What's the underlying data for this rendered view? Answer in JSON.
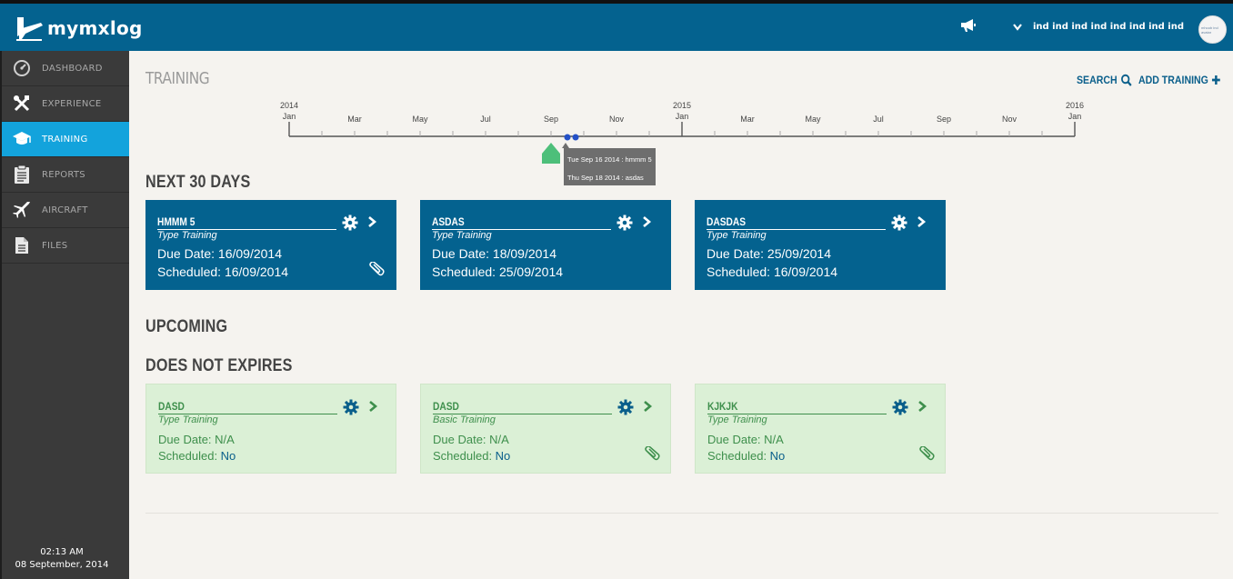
{
  "app": {
    "name": "mymxlog"
  },
  "header": {
    "user_name": "ind ind ind ind ind ind ind ind",
    "avatar_text": "mhoob ind avatar"
  },
  "sidebar": {
    "items": [
      {
        "label": "DASHBOARD",
        "icon": "dashboard-icon"
      },
      {
        "label": "EXPERIENCE",
        "icon": "tools-icon"
      },
      {
        "label": "TRAINING",
        "icon": "graduation-cap-icon",
        "active": true
      },
      {
        "label": "REPORTS",
        "icon": "clipboard-icon"
      },
      {
        "label": "AIRCRAFT",
        "icon": "plane-icon"
      },
      {
        "label": "FILES",
        "icon": "file-icon"
      }
    ],
    "clock_time": "02:13 AM",
    "clock_date": "08 September, 2014"
  },
  "page": {
    "title": "TRAINING",
    "search_label": "SEARCH",
    "add_label": "ADD TRAINING"
  },
  "timeline": {
    "year_labels": [
      {
        "year": "2014",
        "month": "Jan"
      },
      {
        "year": "2015",
        "month": "Jan"
      },
      {
        "year": "2016",
        "month": "Jan"
      }
    ],
    "month_labels": [
      "Mar",
      "May",
      "Jul",
      "Sep",
      "Nov",
      "Mar",
      "May",
      "Jul",
      "Sep",
      "Nov"
    ],
    "tooltip": [
      "Tue Sep 16 2014 : hmmm 5",
      "Thu Sep 18 2014 : asdas"
    ],
    "colors": {
      "today_marker": "#4dbf7a",
      "event_dot": "#2451c7",
      "tooltip_bg": "#6e6e6e"
    }
  },
  "sections": {
    "next_30_days": {
      "title": "NEXT 30 DAYS",
      "cards": [
        {
          "name": "HMMM 5",
          "type": "Type Training",
          "due": "Due Date: 16/09/2014",
          "scheduled": "Scheduled: 16/09/2014",
          "has_attachment": true
        },
        {
          "name": "ASDAS",
          "type": "Type Training",
          "due": "Due Date: 18/09/2014",
          "scheduled": "Scheduled: 25/09/2014",
          "has_attachment": false
        },
        {
          "name": "DASDAS",
          "type": "Type Training",
          "due": "Due Date: 25/09/2014",
          "scheduled": "Scheduled: 16/09/2014",
          "has_attachment": false
        }
      ]
    },
    "upcoming": {
      "title": "UPCOMING"
    },
    "does_not_expire": {
      "title": "DOES NOT EXPIRES",
      "cards": [
        {
          "name": "DASD",
          "type": "Type Training",
          "due": "Due Date: N/A",
          "scheduled_label": "Scheduled: ",
          "scheduled_value": "No",
          "has_attachment": false
        },
        {
          "name": "DASD",
          "type": "Basic Training",
          "due": "Due Date: N/A",
          "scheduled_label": "Scheduled: ",
          "scheduled_value": "No",
          "has_attachment": true
        },
        {
          "name": "KJKJK",
          "type": "Type Training",
          "due": "Due Date: N/A",
          "scheduled_label": "Scheduled: ",
          "scheduled_value": "No",
          "has_attachment": true
        }
      ]
    }
  },
  "colors": {
    "brand_blue": "#04628f",
    "active_nav": "#13a3dc",
    "green_card": "#dbf0d6",
    "green_text": "#3e8f4c"
  }
}
